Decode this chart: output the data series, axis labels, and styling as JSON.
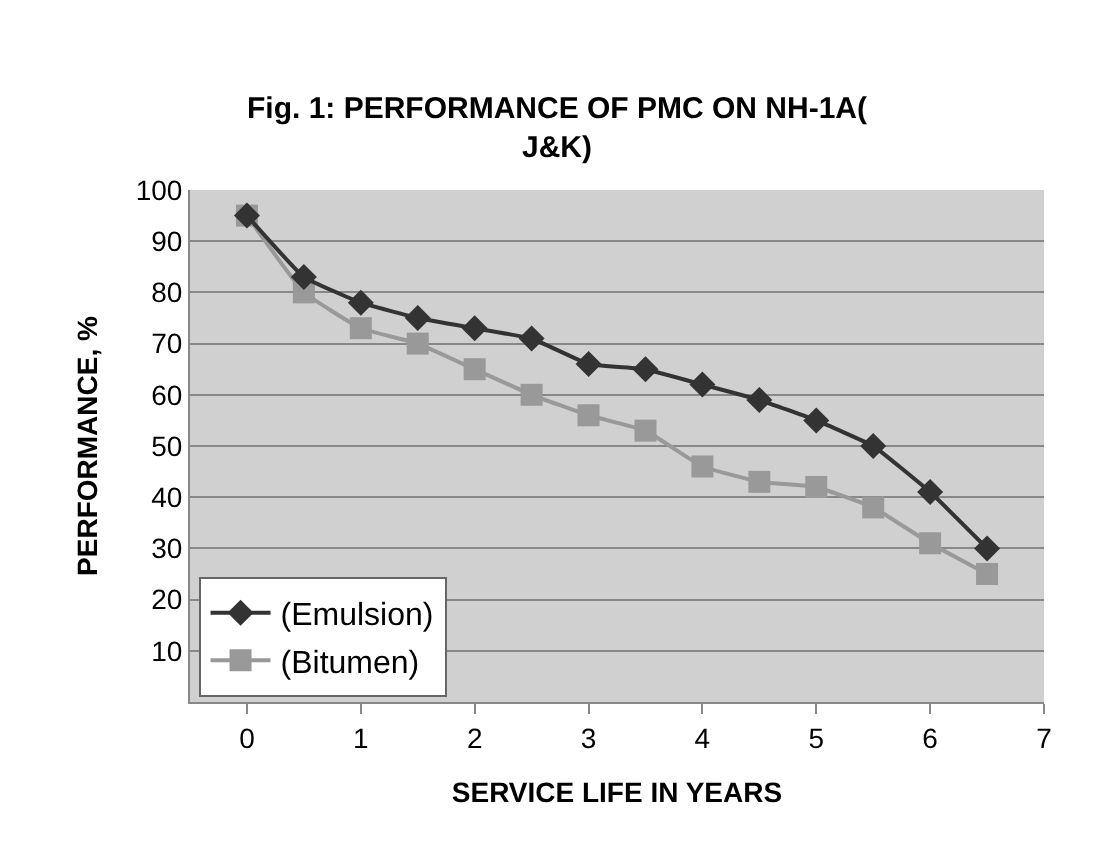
{
  "chart_data": {
    "type": "line",
    "title": "Fig. 1: PERFORMANCE OF PMC ON NH-1A(\nJ&K)",
    "xlabel": "SERVICE LIFE IN YEARS",
    "ylabel": "PERFORMANCE, %",
    "x": [
      0,
      0.5,
      1,
      1.5,
      2,
      2.5,
      3,
      3.5,
      4,
      4.5,
      5,
      5.5,
      6,
      6.5
    ],
    "series": [
      {
        "name": "(Emulsion)",
        "color": "#333333",
        "marker": "diamond",
        "values": [
          95,
          83,
          78,
          75,
          73,
          71,
          66,
          65,
          62,
          59,
          55,
          50,
          41,
          30
        ]
      },
      {
        "name": "(Bitumen)",
        "color": "#999999",
        "marker": "square",
        "values": [
          95,
          80,
          73,
          70,
          65,
          60,
          56,
          53,
          46,
          43,
          42,
          38,
          31,
          25
        ]
      }
    ],
    "xlim": [
      -0.5,
      7
    ],
    "xticks": [
      0,
      1,
      2,
      3,
      4,
      5,
      6,
      7
    ],
    "ylim": [
      0,
      100
    ],
    "yticks": [
      10,
      20,
      30,
      40,
      50,
      60,
      70,
      80,
      90,
      100
    ],
    "grid": "y",
    "legend": "bottom left"
  }
}
